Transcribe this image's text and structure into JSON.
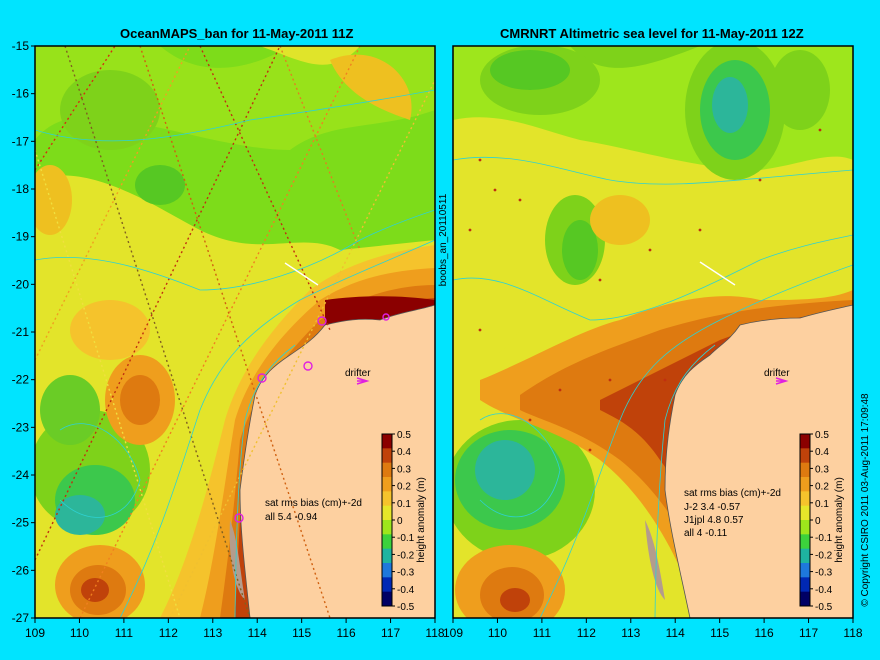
{
  "left_panel": {
    "title": "OceanMAPS_ban for 11-May-2011 11Z",
    "stats_header": "sat rms bias (cm)+-2d",
    "stats_lines": [
      "all 5.4 -0.94"
    ],
    "drifter_label": "drifter",
    "x_ticks": [
      "109",
      "110",
      "111",
      "112",
      "113",
      "114",
      "115",
      "116",
      "117",
      "118"
    ],
    "y_ticks": [
      "-15",
      "-16",
      "-17",
      "-18",
      "-19",
      "-20",
      "-21",
      "-22",
      "-23",
      "-24",
      "-25",
      "-26",
      "-27"
    ]
  },
  "right_panel": {
    "title": "CMRNRT Altimetric sea level  for 11-May-2011 12Z",
    "stats_header": "sat rms bias (cm)+-2d",
    "stats_lines": [
      "J-2   3.4 -0.57",
      "J1jpl 4.8 0.57",
      "all 4 -0.11"
    ],
    "drifter_label": "drifter",
    "x_ticks": [
      "109",
      "110",
      "111",
      "112",
      "113",
      "114",
      "115",
      "116",
      "117",
      "118"
    ]
  },
  "side_label": "boobs_an_20110511",
  "colorbar": {
    "label": "height anomaly (m)",
    "ticks": [
      "0.5",
      "0.4",
      "0.3",
      "0.2",
      "0.1",
      "0",
      "-0.1",
      "-0.2",
      "-0.3",
      "-0.4",
      "-0.5"
    ],
    "colors": [
      "#8b0000",
      "#c0420a",
      "#de7a10",
      "#ef9e1d",
      "#f5c32c",
      "#e6e62a",
      "#9ee61c",
      "#3cd23c",
      "#1eb4a0",
      "#1e78dc",
      "#0028b4",
      "#000064"
    ]
  },
  "copyright": "© Copyright CSIRO 2011  03-Aug-2011 17:09:48"
}
